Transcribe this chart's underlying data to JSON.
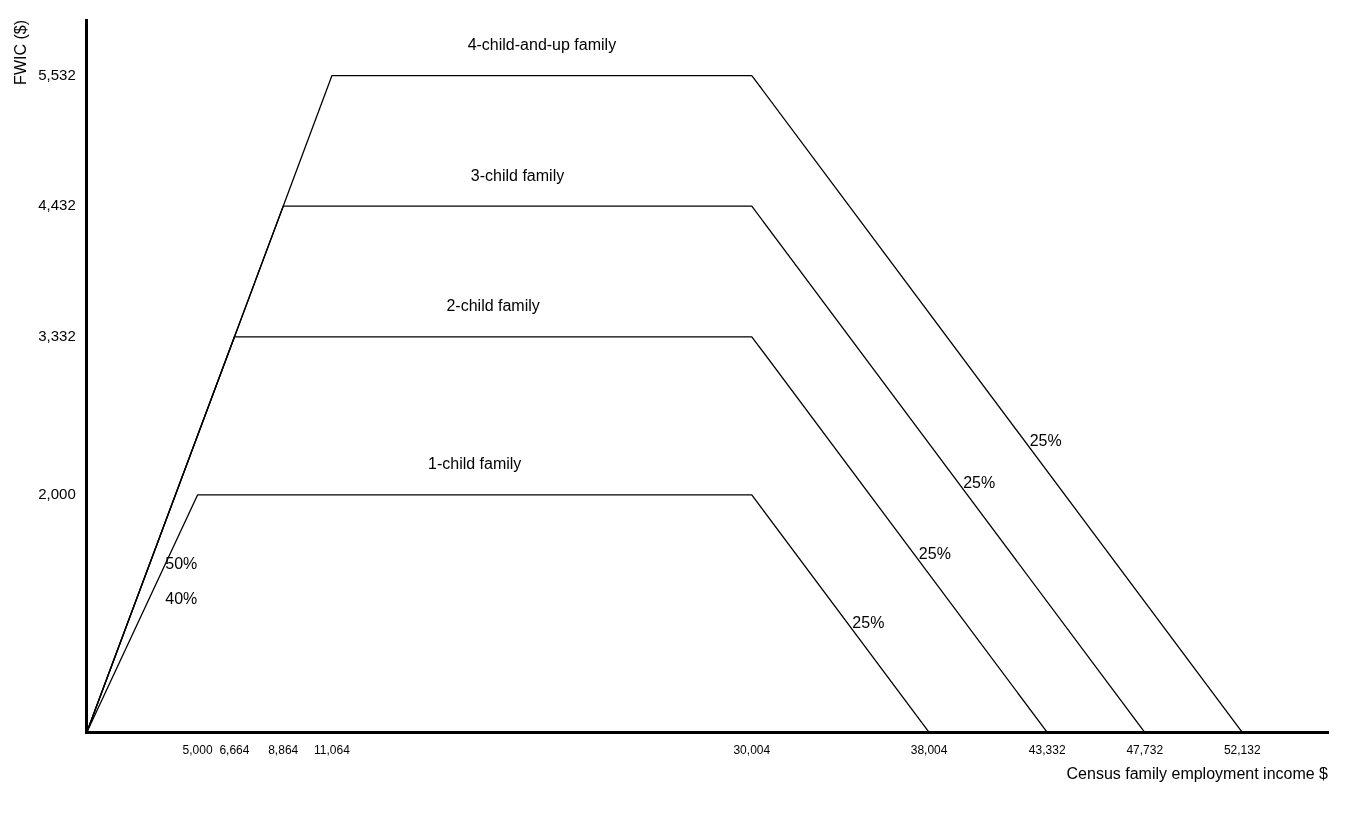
{
  "chart_data": {
    "type": "line",
    "xlabel": "Census family employment income $",
    "ylabel": "FWIC ($)",
    "xlim": [
      0,
      56000
    ],
    "ylim": [
      0,
      6000
    ],
    "xticks": [
      {
        "value": 5000,
        "label": "5,000"
      },
      {
        "value": 6664,
        "label": "6,664"
      },
      {
        "value": 8864,
        "label": "8,864"
      },
      {
        "value": 11064,
        "label": "11,064"
      },
      {
        "value": 30004,
        "label": "30,004"
      },
      {
        "value": 38004,
        "label": "38,004"
      },
      {
        "value": 43332,
        "label": "43,332"
      },
      {
        "value": 47732,
        "label": "47,732"
      },
      {
        "value": 52132,
        "label": "52,132"
      }
    ],
    "yticks": [
      {
        "value": 2000,
        "label": "2,000"
      },
      {
        "value": 3332,
        "label": "3,332"
      },
      {
        "value": 4432,
        "label": "4,432"
      },
      {
        "value": 5532,
        "label": "5,532"
      }
    ],
    "series": [
      {
        "name": "4-child-and-up family",
        "color": "#000000",
        "x": [
          0,
          11064,
          30004,
          52132
        ],
        "values": [
          0,
          5532,
          5532,
          0
        ]
      },
      {
        "name": "3-child family",
        "color": "#000000",
        "x": [
          0,
          8864,
          30004,
          47732
        ],
        "values": [
          0,
          4432,
          4432,
          0
        ]
      },
      {
        "name": "2-child family",
        "color": "#000000",
        "x": [
          0,
          6664,
          30004,
          43332
        ],
        "values": [
          0,
          3332,
          3332,
          0
        ]
      },
      {
        "name": "1-child family",
        "color": "#000000",
        "x": [
          0,
          5000,
          30004,
          38004
        ],
        "values": [
          0,
          2000,
          2000,
          0
        ]
      }
    ],
    "annotations": [
      {
        "text": "50%",
        "x": 3000,
        "y": 1500
      },
      {
        "text": "40%",
        "x": 3000,
        "y": 1200
      },
      {
        "text": "25%",
        "x": 34000,
        "y": 1001
      },
      {
        "text": "25%",
        "x": 37000,
        "y": 1583
      },
      {
        "text": "25%",
        "x": 39000,
        "y": 2183
      },
      {
        "text": "25%",
        "x": 42000,
        "y": 2533
      }
    ],
    "legend": false,
    "grid": false,
    "marker": "none",
    "line_style": "solid"
  }
}
